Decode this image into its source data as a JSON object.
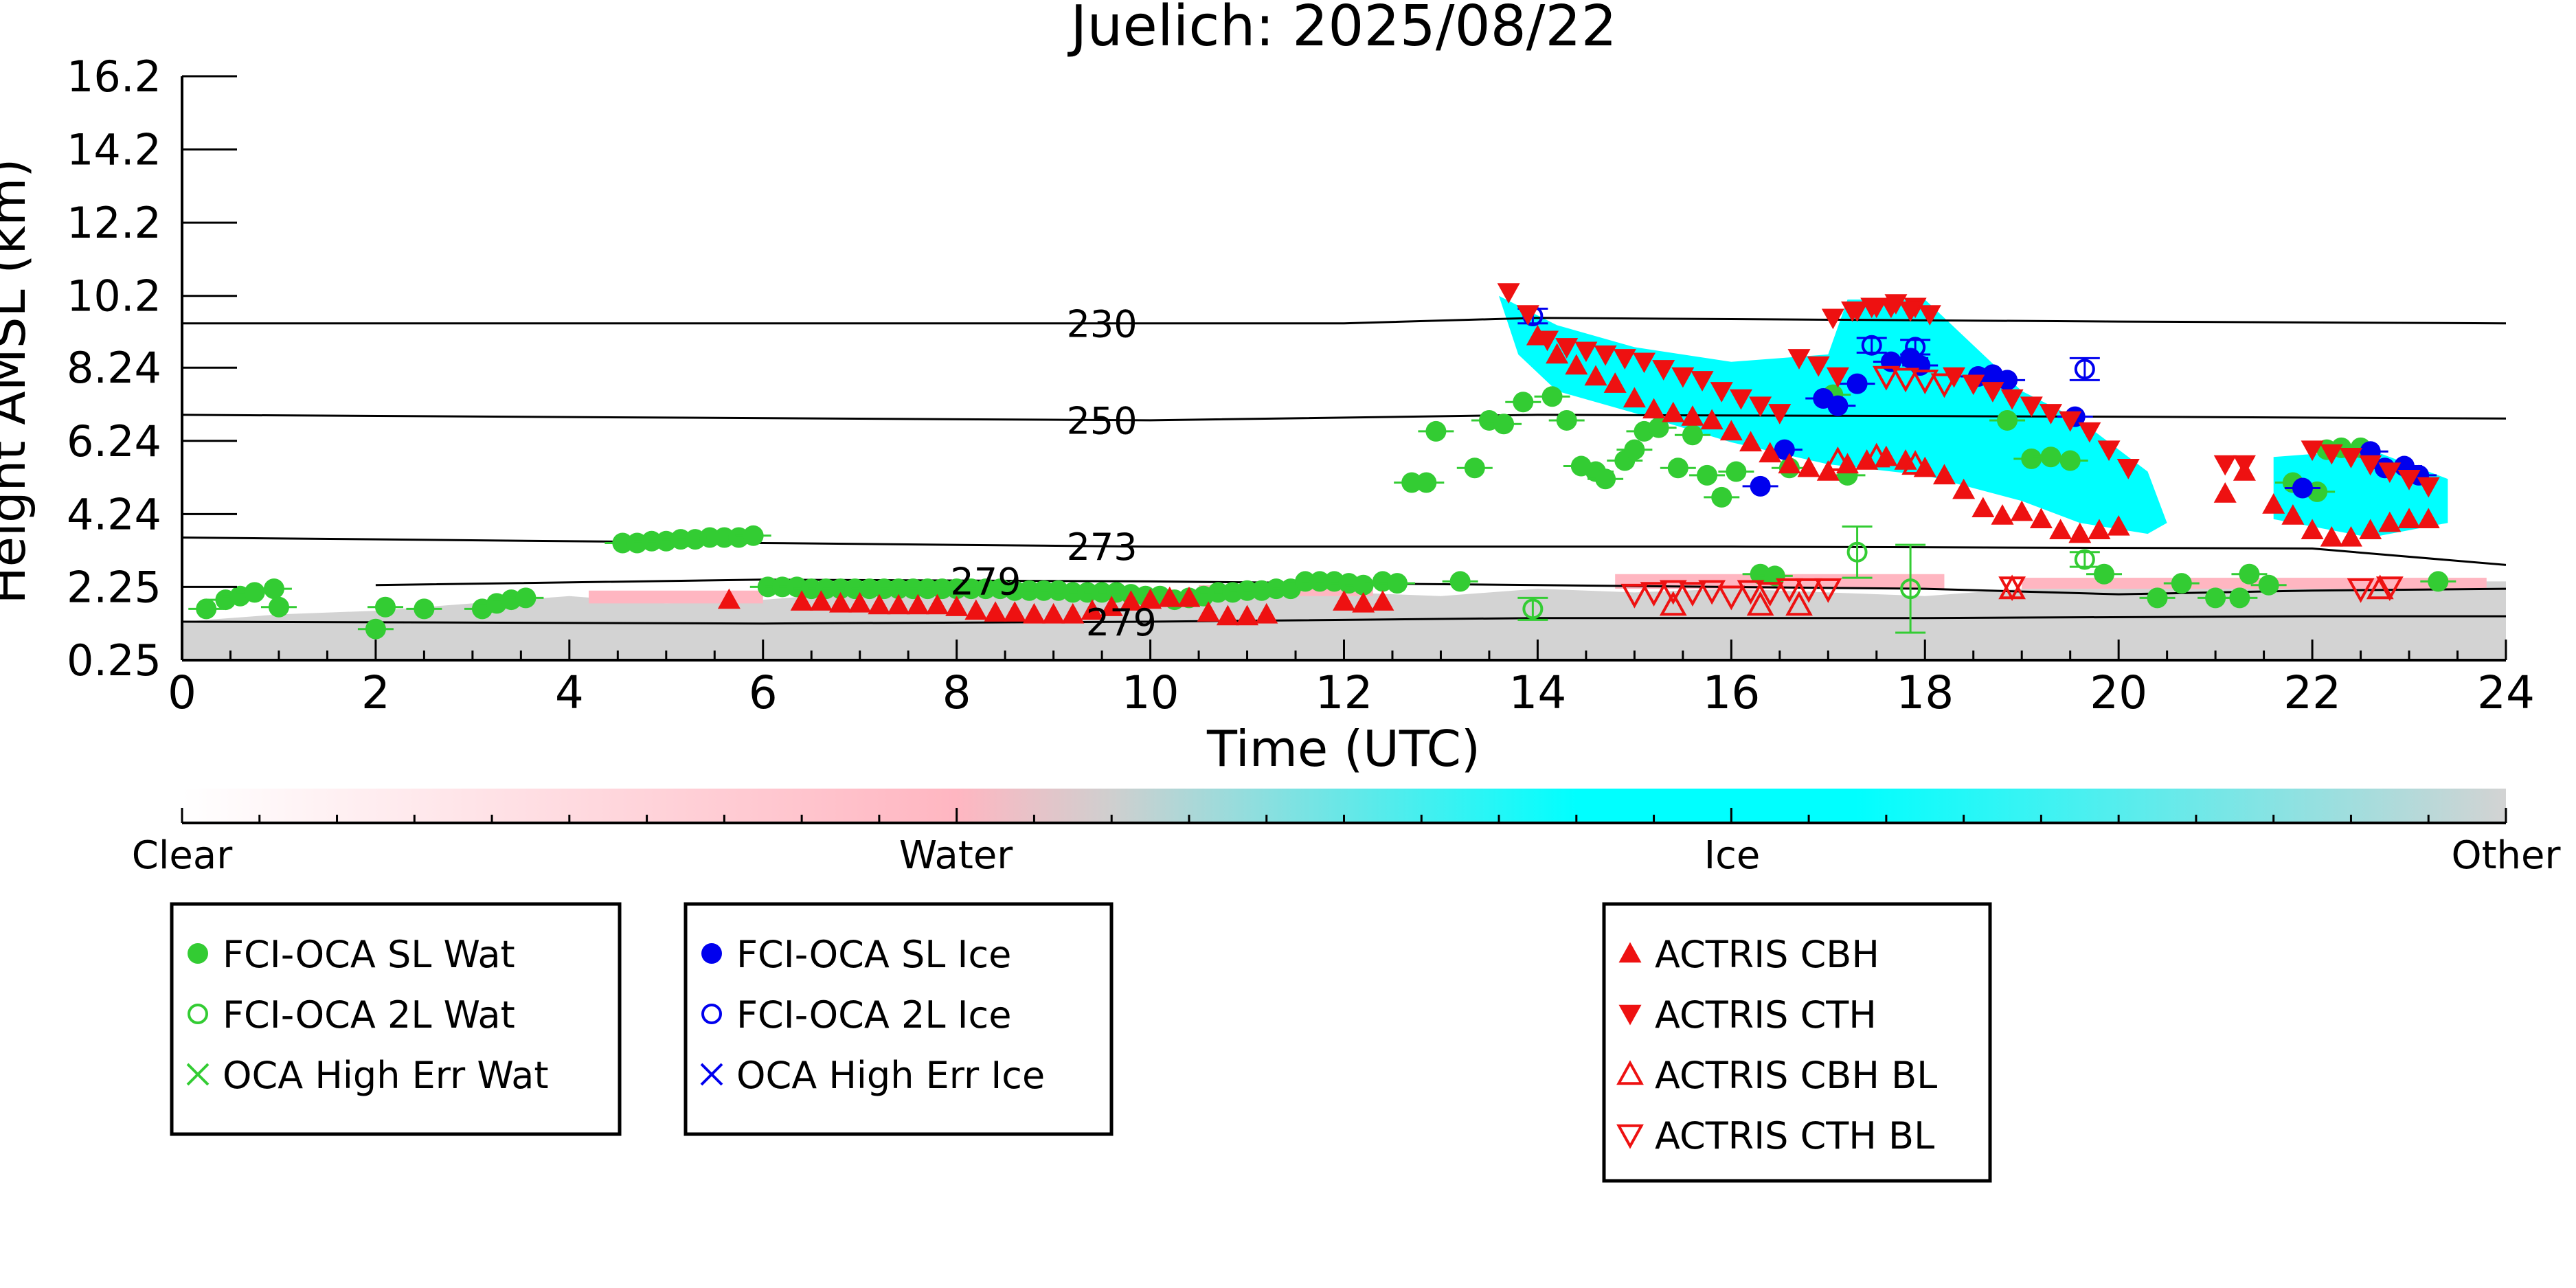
{
  "chart_data": {
    "type": "scatter",
    "title": "Juelich: 2025/08/22",
    "xlabel": "Time (UTC)",
    "ylabel": "Height AMSL (km)",
    "xlim": [
      0,
      24
    ],
    "ylim": [
      0.25,
      16.2
    ],
    "xticks": [
      "0",
      "2",
      "4",
      "6",
      "8",
      "10",
      "12",
      "14",
      "16",
      "18",
      "20",
      "22",
      "24"
    ],
    "yticks": [
      {
        "label": "0.25",
        "value": 0.25
      },
      {
        "label": "2.25",
        "value": 2.25
      },
      {
        "label": "4.24",
        "value": 4.24
      },
      {
        "label": "6.24",
        "value": 6.24
      },
      {
        "label": "8.24",
        "value": 8.24
      },
      {
        "label": "10.2",
        "value": 10.2
      },
      {
        "label": "12.2",
        "value": 12.2
      },
      {
        "label": "14.2",
        "value": 14.2
      },
      {
        "label": "16.2",
        "value": 16.2
      }
    ],
    "grid": false,
    "contours": [
      {
        "label": "230",
        "label_x": 9.5,
        "x": [
          0,
          12,
          14,
          20,
          24
        ],
        "y": [
          9.45,
          9.45,
          9.6,
          9.5,
          9.45
        ]
      },
      {
        "label": "250",
        "label_x": 9.5,
        "x": [
          0,
          10,
          14,
          20,
          24
        ],
        "y": [
          6.95,
          6.8,
          6.95,
          6.9,
          6.85
        ]
      },
      {
        "label": "273",
        "label_x": 9.5,
        "x": [
          0,
          6,
          10,
          16,
          22,
          24
        ],
        "y": [
          3.6,
          3.45,
          3.35,
          3.35,
          3.3,
          2.85
        ]
      },
      {
        "label": "279",
        "label_x": 8.3,
        "x": [
          2,
          6,
          10,
          14,
          18,
          20,
          22,
          24
        ],
        "y": [
          2.3,
          2.45,
          2.4,
          2.3,
          2.2,
          2.05,
          2.15,
          2.2
        ]
      },
      {
        "label": "279",
        "label_x": 9.7,
        "x": [
          0,
          6,
          10,
          14,
          18,
          22,
          24
        ],
        "y": [
          1.3,
          1.25,
          1.3,
          1.4,
          1.4,
          1.45,
          1.45
        ]
      }
    ],
    "colorbar": {
      "labels": [
        {
          "label": "Clear",
          "pos": 0
        },
        {
          "label": "Water",
          "pos": 0.333
        },
        {
          "label": "Ice",
          "pos": 0.667
        },
        {
          "label": "Other",
          "pos": 1
        }
      ],
      "colors": [
        "#ffffff",
        "#ffb6c1",
        "#cfcfcf",
        "#00ffff",
        "#00ffff",
        "#d3d3d3"
      ],
      "stops": [
        0,
        0.333,
        0.4,
        0.6,
        0.72,
        1
      ]
    },
    "background_regions": [
      {
        "class": "Other",
        "color": "#d3d3d3",
        "x": [
          0,
          24
        ],
        "y_bottom": 0.25,
        "y_top": [
          1.3,
          1.5,
          1.6,
          1.8,
          2.0,
          1.8,
          1.9,
          2.1,
          2.0,
          2.1,
          2.1,
          2.0,
          2.1,
          2.0,
          2.2,
          2.1,
          2.2,
          2.1,
          2.0,
          2.2,
          2.2,
          2.3,
          2.3,
          2.4,
          2.4
        ]
      },
      {
        "class": "Water",
        "color": "#ffb6c1",
        "bands": [
          {
            "x0": 4.2,
            "x1": 6.0,
            "y0": 1.8,
            "y1": 2.15
          },
          {
            "x0": 10.5,
            "x1": 12.3,
            "y0": 2.0,
            "y1": 2.3
          },
          {
            "x0": 14.8,
            "x1": 18.2,
            "y0": 2.2,
            "y1": 2.6
          },
          {
            "x0": 19.0,
            "x1": 23.8,
            "y0": 2.2,
            "y1": 2.5
          }
        ]
      },
      {
        "class": "Ice",
        "color": "#00ffff",
        "polygons": [
          {
            "x": [
              13.6,
              14.2,
              15.0,
              16.0,
              17.0,
              17.2,
              18.0,
              19.0,
              19.6,
              20.3,
              20.5,
              20.3,
              19.6,
              19.0,
              18.0,
              17.0,
              16.0,
              15.0,
              14.2,
              13.8
            ],
            "y": [
              10.2,
              9.4,
              8.8,
              8.4,
              8.6,
              10.1,
              10.1,
              7.6,
              6.8,
              5.4,
              4.0,
              3.7,
              4.0,
              4.6,
              5.3,
              5.6,
              6.2,
              7.0,
              7.6,
              8.6
            ]
          },
          {
            "x": [
              21.6,
              22.6,
              23.4,
              23.4,
              22.6,
              21.6
            ],
            "y": [
              5.8,
              6.0,
              5.2,
              4.0,
              3.6,
              4.1
            ]
          }
        ]
      }
    ],
    "series": [
      {
        "name": "FCI-OCA SL Wat",
        "marker": "filled-circle",
        "color": "#33cc33",
        "x": [
          0.25,
          0.45,
          0.6,
          0.75,
          0.95,
          1.0,
          2.0,
          2.1,
          2.5,
          3.1,
          3.25,
          3.4,
          3.55,
          4.55,
          4.7,
          4.85,
          5.0,
          5.15,
          5.3,
          5.45,
          5.6,
          5.75,
          5.9,
          6.05,
          6.2,
          6.35,
          6.5,
          6.65,
          6.8,
          6.95,
          7.1,
          7.25,
          7.4,
          7.55,
          7.7,
          7.85,
          8.0,
          8.15,
          8.3,
          8.45,
          8.6,
          8.75,
          8.9,
          9.05,
          9.2,
          9.35,
          9.5,
          9.65,
          9.8,
          9.95,
          10.1,
          10.25,
          10.4,
          10.55,
          10.7,
          10.85,
          11.0,
          11.15,
          11.3,
          11.45,
          11.6,
          11.75,
          11.9,
          12.05,
          12.2,
          12.4,
          12.55,
          13.2,
          12.7,
          12.95,
          12.85,
          13.35,
          13.5,
          13.65,
          13.85,
          14.15,
          14.3,
          14.45,
          14.6,
          14.7,
          14.9,
          15.0,
          15.1,
          15.25,
          15.45,
          15.6,
          15.75,
          15.9,
          16.05,
          16.3,
          16.45,
          16.6,
          17.05,
          17.2,
          18.85,
          19.1,
          19.3,
          19.5,
          19.85,
          20.4,
          20.65,
          21.0,
          21.25,
          21.35,
          21.55,
          21.8,
          22.05,
          22.15,
          22.3,
          22.5,
          23.3
        ],
        "y": [
          1.65,
          1.9,
          2.0,
          2.1,
          2.2,
          1.7,
          1.1,
          1.7,
          1.65,
          1.65,
          1.8,
          1.9,
          1.95,
          3.45,
          3.45,
          3.5,
          3.5,
          3.55,
          3.55,
          3.6,
          3.6,
          3.6,
          3.65,
          2.25,
          2.25,
          2.25,
          2.2,
          2.2,
          2.2,
          2.2,
          2.2,
          2.2,
          2.2,
          2.2,
          2.2,
          2.2,
          2.2,
          2.2,
          2.2,
          2.2,
          2.15,
          2.15,
          2.15,
          2.15,
          2.1,
          2.1,
          2.1,
          2.1,
          2.05,
          2.0,
          2.0,
          1.9,
          1.95,
          2.0,
          2.1,
          2.1,
          2.15,
          2.15,
          2.2,
          2.2,
          2.4,
          2.4,
          2.4,
          2.35,
          2.3,
          2.4,
          2.35,
          2.4,
          5.1,
          6.5,
          5.1,
          5.5,
          6.8,
          6.7,
          7.3,
          7.45,
          6.8,
          5.55,
          5.4,
          5.2,
          5.7,
          6.0,
          6.5,
          6.6,
          5.5,
          6.4,
          5.3,
          4.7,
          5.4,
          2.6,
          2.55,
          5.5,
          7.5,
          5.3,
          6.8,
          5.75,
          5.8,
          5.7,
          2.6,
          1.95,
          2.35,
          1.95,
          1.95,
          2.6,
          2.3,
          5.1,
          4.85,
          6.0,
          6.05,
          6.05,
          2.4
        ],
        "err": []
      },
      {
        "name": "FCI-OCA 2L Wat",
        "marker": "open-circle",
        "color": "#33cc33",
        "x": [
          13.95,
          17.3,
          17.85,
          19.65
        ],
        "y": [
          1.65,
          3.2,
          2.2,
          3.0
        ],
        "err": [
          0.3,
          0.7,
          1.2,
          0.2
        ]
      },
      {
        "name": "OCA High Err Wat",
        "marker": "x",
        "color": "#33cc33",
        "x": [],
        "y": [],
        "err": []
      },
      {
        "name": "FCI-OCA SL Ice",
        "marker": "filled-circle",
        "color": "#0000ee",
        "x": [
          16.3,
          16.55,
          16.95,
          17.1,
          17.3,
          17.65,
          17.85,
          17.95,
          18.55,
          18.7,
          18.85,
          19.55,
          21.9,
          22.6,
          22.75,
          22.95,
          23.1
        ],
        "y": [
          5.0,
          6.0,
          7.4,
          7.2,
          7.8,
          8.4,
          8.5,
          8.3,
          8.0,
          8.05,
          7.9,
          6.9,
          4.95,
          5.95,
          5.5,
          5.55,
          5.3
        ],
        "err": []
      },
      {
        "name": "FCI-OCA 2L Ice",
        "marker": "open-circle",
        "color": "#0000ee",
        "x": [
          13.95,
          17.45,
          17.9,
          19.65
        ],
        "y": [
          9.65,
          8.85,
          8.8,
          8.2
        ],
        "err": [
          0.2,
          0.2,
          0.2,
          0.3
        ]
      },
      {
        "name": "OCA High Err Ice",
        "marker": "x",
        "color": "#0000ee",
        "x": [],
        "y": [],
        "err": []
      },
      {
        "name": "ACTRIS CBH",
        "marker": "triangle-up",
        "color": "#ee1111",
        "x": [
          5.65,
          6.4,
          6.6,
          6.8,
          7.0,
          7.2,
          7.4,
          7.6,
          7.8,
          8.0,
          8.2,
          8.4,
          8.6,
          8.8,
          9.0,
          9.2,
          9.4,
          9.6,
          9.8,
          10.0,
          10.2,
          10.4,
          10.6,
          10.8,
          11.0,
          11.2,
          12.0,
          12.2,
          12.4,
          14.0,
          14.2,
          14.4,
          14.6,
          14.8,
          15.0,
          15.2,
          15.4,
          15.6,
          15.8,
          16.0,
          16.2,
          16.4,
          16.6,
          16.8,
          17.0,
          17.2,
          17.4,
          17.6,
          17.8,
          18.0,
          18.2,
          18.4,
          18.6,
          18.8,
          19.0,
          19.2,
          19.4,
          19.6,
          19.8,
          20.0,
          21.1,
          21.3,
          21.6,
          21.8,
          22.0,
          22.2,
          22.4,
          22.6,
          22.8,
          23.0,
          23.2
        ],
        "y": [
          1.9,
          1.85,
          1.85,
          1.8,
          1.8,
          1.75,
          1.75,
          1.75,
          1.75,
          1.7,
          1.6,
          1.55,
          1.55,
          1.5,
          1.5,
          1.5,
          1.6,
          1.7,
          1.85,
          1.9,
          1.95,
          1.95,
          1.55,
          1.45,
          1.45,
          1.5,
          1.85,
          1.8,
          1.85,
          9.1,
          8.6,
          8.3,
          8.0,
          7.8,
          7.4,
          7.1,
          7.0,
          6.9,
          6.8,
          6.5,
          6.2,
          5.9,
          5.6,
          5.5,
          5.4,
          5.6,
          5.7,
          5.8,
          5.7,
          5.5,
          5.3,
          4.9,
          4.4,
          4.2,
          4.3,
          4.1,
          3.8,
          3.7,
          3.8,
          3.9,
          4.8,
          5.4,
          4.5,
          4.2,
          3.8,
          3.6,
          3.6,
          3.8,
          4.0,
          4.1,
          4.1
        ],
        "err": []
      },
      {
        "name": "ACTRIS CTH",
        "marker": "triangle-down",
        "color": "#ee1111",
        "x": [
          13.7,
          13.9,
          14.1,
          14.3,
          14.5,
          14.7,
          14.9,
          15.1,
          15.3,
          15.5,
          15.7,
          15.9,
          16.1,
          16.3,
          16.5,
          16.7,
          16.9,
          17.1,
          17.3,
          17.5,
          17.7,
          17.9,
          17.05,
          17.25,
          17.45,
          17.65,
          17.85,
          18.05,
          18.3,
          18.5,
          18.7,
          18.9,
          19.1,
          19.3,
          19.5,
          19.7,
          19.9,
          20.1,
          21.1,
          21.3,
          22.0,
          22.2,
          22.4,
          22.6,
          22.8,
          23.0,
          23.2
        ],
        "y": [
          10.3,
          9.7,
          9.0,
          8.8,
          8.7,
          8.6,
          8.5,
          8.4,
          8.2,
          8.0,
          7.9,
          7.6,
          7.4,
          7.2,
          7.0,
          8.5,
          8.3,
          8.0,
          9.8,
          9.9,
          10.0,
          9.9,
          9.6,
          9.8,
          9.9,
          9.9,
          9.8,
          9.7,
          8.0,
          7.8,
          7.6,
          7.4,
          7.2,
          7.0,
          6.8,
          6.5,
          6.0,
          5.5,
          5.6,
          5.6,
          6.0,
          5.9,
          5.8,
          5.6,
          5.4,
          5.2,
          5.0
        ],
        "err": []
      },
      {
        "name": "ACTRIS CBH BL",
        "marker": "open-triangle-up",
        "color": "#ee1111",
        "x": [
          15.4,
          16.3,
          16.7,
          17.1,
          17.5,
          17.9,
          18.9,
          22.7
        ],
        "y": [
          1.75,
          1.75,
          1.75,
          5.7,
          5.8,
          5.6,
          2.2,
          2.2
        ],
        "err": []
      },
      {
        "name": "ACTRIS CTH BL",
        "marker": "open-triangle-down",
        "color": "#ee1111",
        "x": [
          15.0,
          15.2,
          15.4,
          15.6,
          15.8,
          16.0,
          16.2,
          16.4,
          16.6,
          16.8,
          17.0,
          17.6,
          17.8,
          18.0,
          18.2,
          18.9,
          22.5,
          22.8
        ],
        "y": [
          2.05,
          2.1,
          2.15,
          2.1,
          2.15,
          2.0,
          2.15,
          2.1,
          2.2,
          2.2,
          2.2,
          8.0,
          7.95,
          7.9,
          7.8,
          2.25,
          2.2,
          2.25
        ],
        "err": []
      }
    ]
  }
}
